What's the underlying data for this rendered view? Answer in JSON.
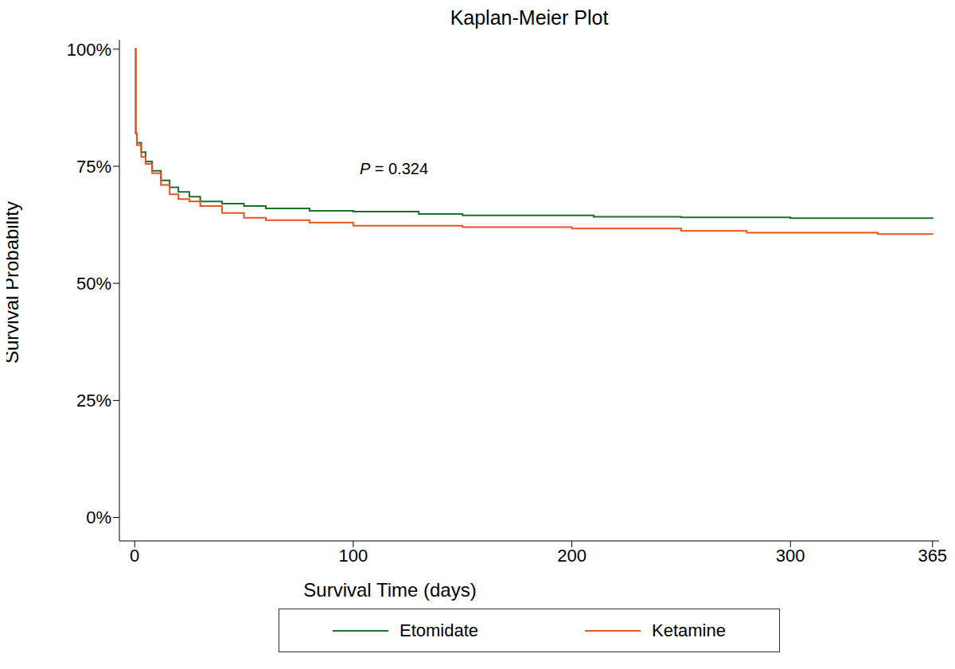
{
  "chart_data": {
    "type": "line",
    "title": "Kaplan-Meier Plot",
    "x_label": "Survival Time (days)",
    "y_label": "Survival Probability",
    "annotations": [
      "P = 0.324"
    ],
    "legend": "bottom",
    "grid": false,
    "xlim": [
      -7,
      368
    ],
    "xticks": [
      0,
      100,
      200,
      300,
      365
    ],
    "ylim": [
      -5,
      102
    ],
    "yticks": [
      {
        "value": 0,
        "label": "0%"
      },
      {
        "value": 25,
        "label": "25%"
      },
      {
        "value": 50,
        "label": "50%"
      },
      {
        "value": 75,
        "label": "75%"
      },
      {
        "value": 100,
        "label": "100%"
      }
    ],
    "series": [
      {
        "name": "Etomidate",
        "color": "#1f6e2c",
        "marker": "none",
        "line_style": "step",
        "x": [
          0,
          0.5,
          1,
          3,
          5,
          8,
          12,
          16,
          20,
          25,
          30,
          40,
          50,
          60,
          80,
          100,
          130,
          150,
          180,
          210,
          250,
          300,
          365
        ],
        "values": [
          100,
          82,
          80,
          78,
          76,
          74,
          72,
          70.5,
          69.5,
          68.5,
          67.5,
          67,
          66.5,
          66,
          65.5,
          65.3,
          64.8,
          64.5,
          64.5,
          64.2,
          64.1,
          63.9,
          63.8
        ]
      },
      {
        "name": "Ketamine",
        "color": "#e9541f",
        "marker": "none",
        "line_style": "step",
        "x": [
          0,
          0.5,
          1,
          3,
          5,
          8,
          12,
          16,
          20,
          25,
          30,
          40,
          50,
          60,
          80,
          100,
          150,
          200,
          250,
          280,
          300,
          340,
          365
        ],
        "values": [
          100,
          82,
          79.5,
          77,
          75.5,
          73.5,
          71,
          69,
          68,
          67.5,
          66.5,
          65,
          64,
          63.5,
          63,
          62.3,
          62,
          61.7,
          61.2,
          60.8,
          60.8,
          60.5,
          60.4
        ]
      }
    ]
  }
}
